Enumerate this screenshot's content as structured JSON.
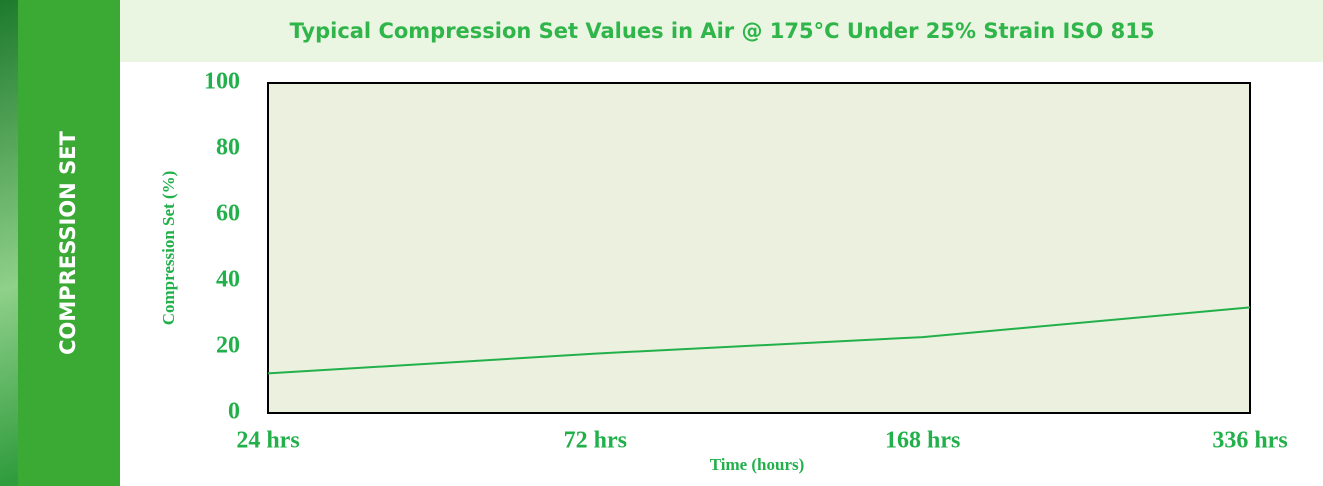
{
  "side_label": "COMPRESSION SET",
  "chart_data": {
    "type": "line",
    "title": "Typical Compression Set Values in Air @ 175°C Under 25% Strain ISO 815",
    "x_label": "Time (hours)",
    "y_label": "Compression Set (%)",
    "categories": [
      "24 hrs",
      "72 hrs",
      "168 hrs",
      "336 hrs"
    ],
    "series": [
      {
        "name": "Compression Set",
        "color": "#22b04b",
        "values": [
          12,
          18,
          23,
          32
        ]
      }
    ],
    "ylim": [
      0,
      100
    ],
    "yticks": [
      0,
      20,
      40,
      60,
      80,
      100
    ]
  }
}
